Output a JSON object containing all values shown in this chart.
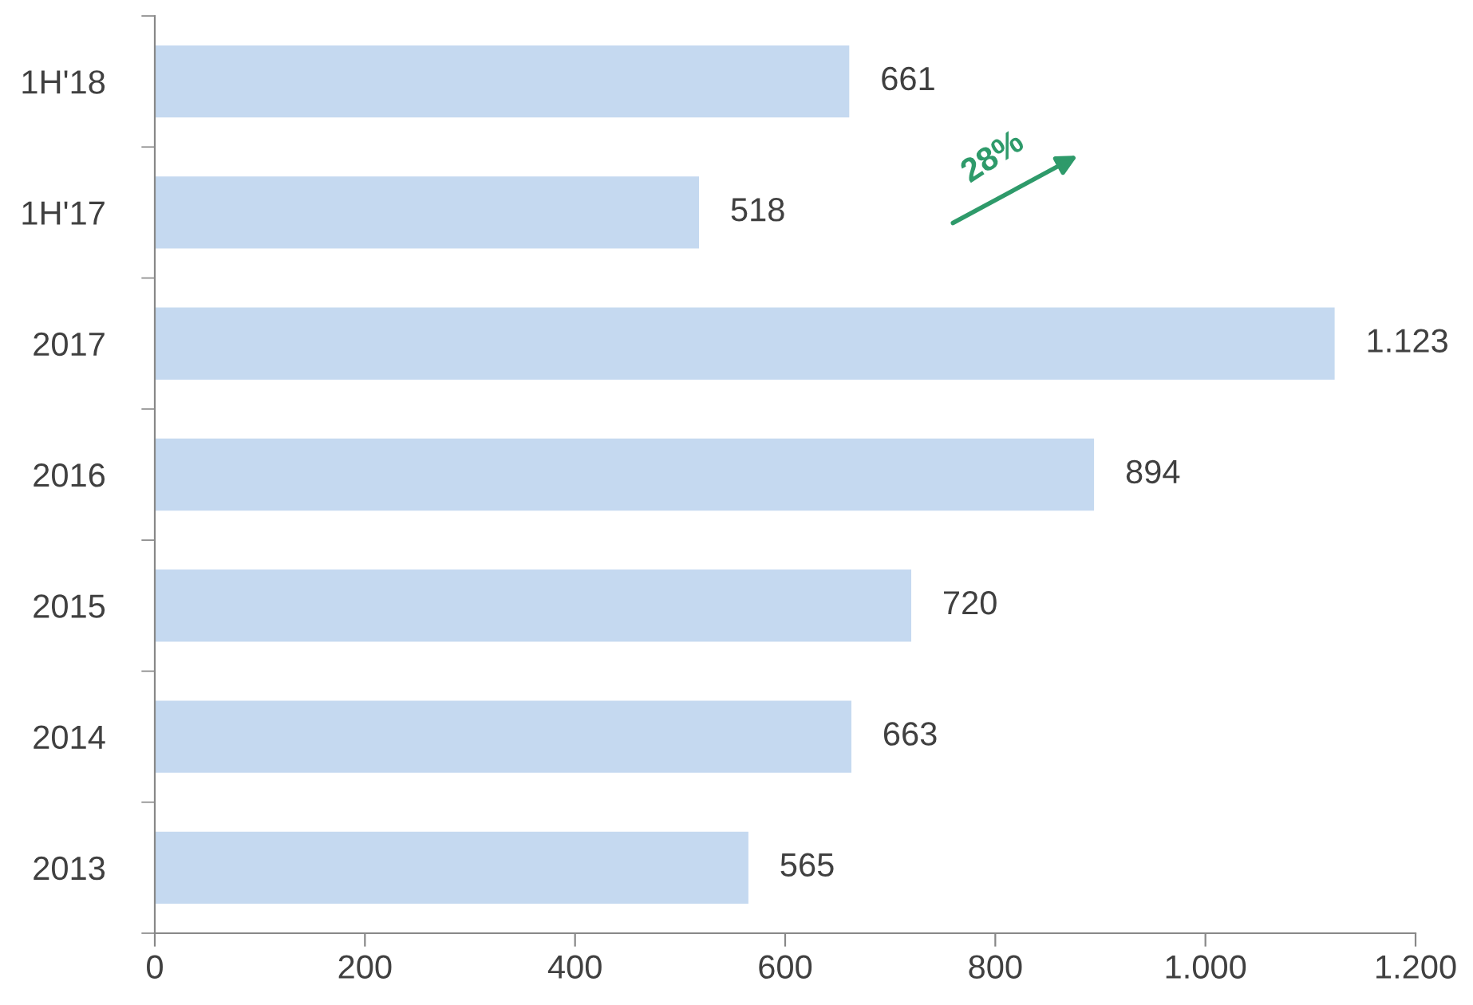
{
  "chart_data": {
    "type": "bar",
    "orientation": "horizontal",
    "categories": [
      "1H'18",
      "1H'17",
      "2017",
      "2016",
      "2015",
      "2014",
      "2013"
    ],
    "values": [
      661,
      518,
      1123,
      894,
      720,
      663,
      565
    ],
    "value_labels": [
      "661",
      "518",
      "1.123",
      "894",
      "720",
      "663",
      "565"
    ],
    "color": "#c5d9f0",
    "xlim": [
      0,
      1200
    ],
    "xticks": [
      0,
      200,
      400,
      600,
      800,
      {
        "value": 1000,
        "label": "1.000"
      },
      {
        "value": 1200,
        "label": "1.200"
      }
    ],
    "annotations": [
      "28%"
    ],
    "grid": false,
    "legend": false
  }
}
